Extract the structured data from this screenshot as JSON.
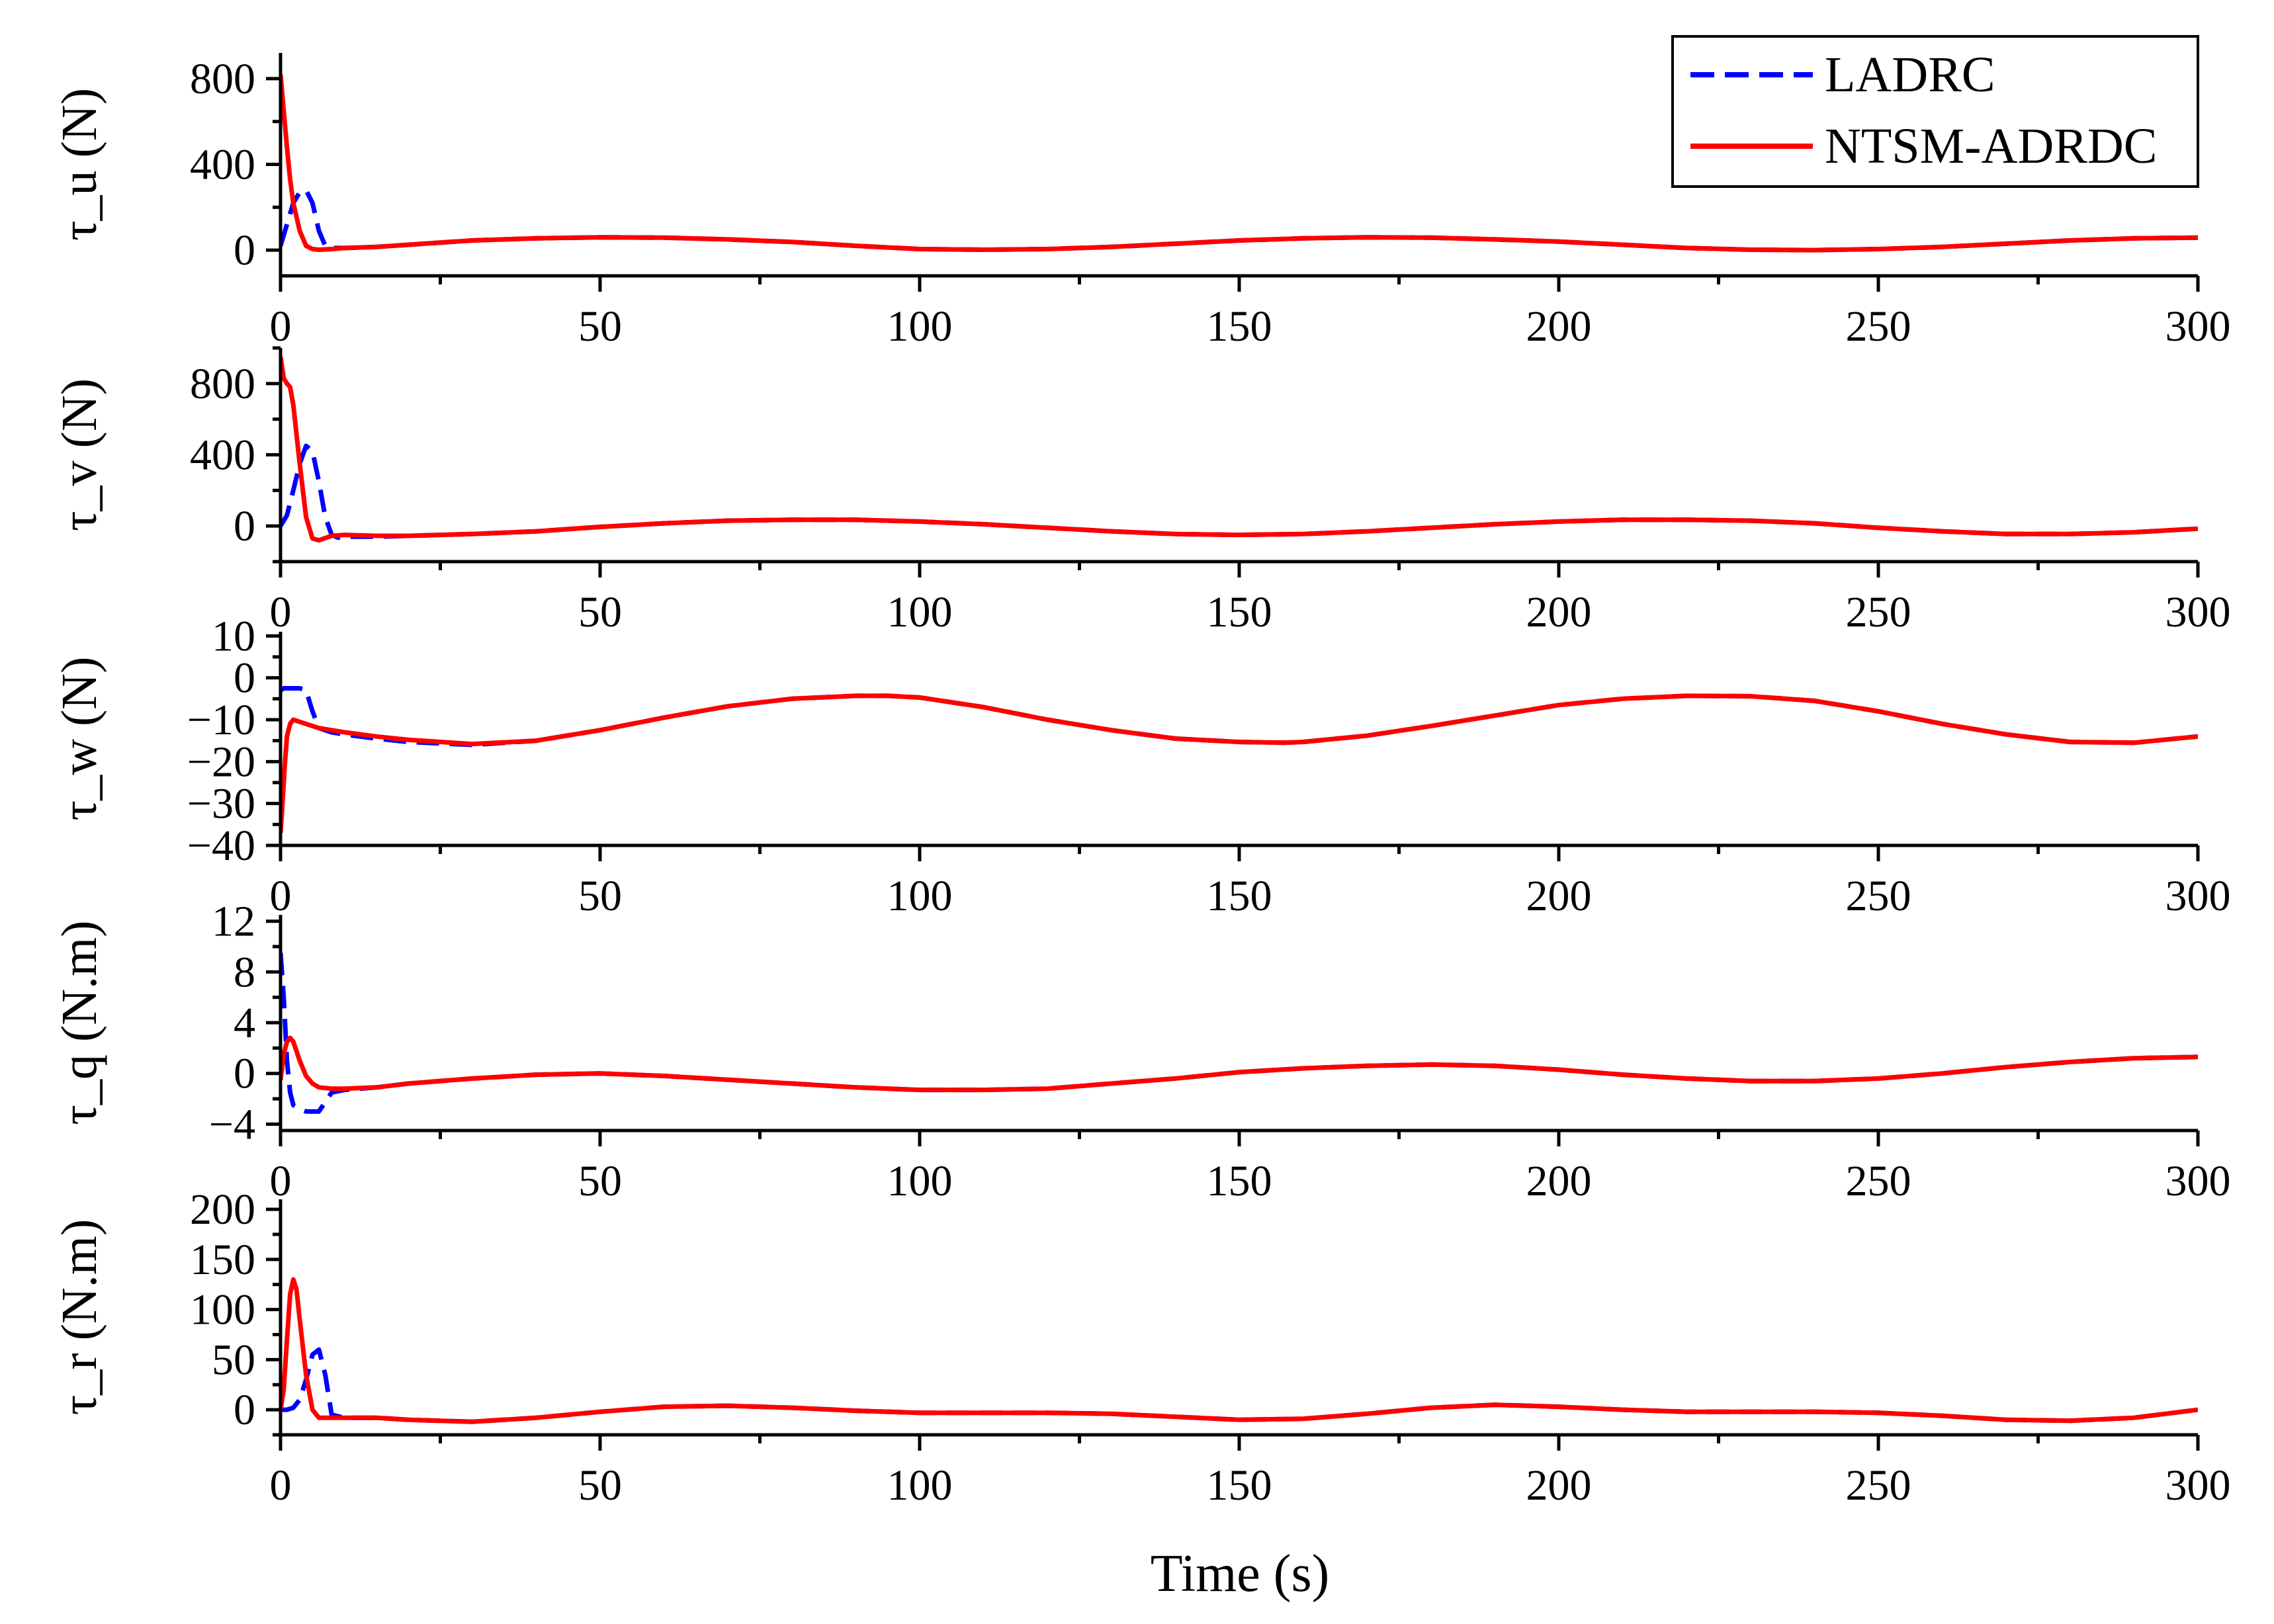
{
  "chart_data": {
    "type": "line",
    "xlabel": "Time (s)",
    "xlim": [
      0,
      300
    ],
    "xticks": [
      0,
      50,
      100,
      150,
      200,
      250,
      300
    ],
    "legend": {
      "placement": "top-right",
      "entries": [
        {
          "name": "LADRC",
          "color": "#0000FF",
          "style": "dashed"
        },
        {
          "name": "NTSM-ADRDC",
          "color": "#FF0000",
          "style": "solid"
        }
      ]
    },
    "panels": [
      {
        "ylabel": "τ_u (N)",
        "ylim": [
          -120,
          920
        ],
        "yticks": [
          0,
          400,
          800
        ],
        "series": [
          {
            "name": "LADRC",
            "x": [
              0,
              1,
              2,
              3,
              4,
              5,
              6,
              7,
              8,
              10,
              15,
              20,
              30,
              40,
              50,
              60,
              70,
              80,
              90,
              100,
              110,
              120,
              130,
              140,
              150,
              160,
              170,
              180,
              190,
              200,
              210,
              220,
              230,
              240,
              250,
              260,
              270,
              280,
              290,
              300
            ],
            "y": [
              20,
              120,
              220,
              270,
              280,
              220,
              90,
              20,
              10,
              10,
              15,
              25,
              45,
              55,
              60,
              58,
              50,
              38,
              20,
              5,
              2,
              5,
              15,
              30,
              45,
              55,
              60,
              58,
              50,
              40,
              25,
              10,
              2,
              0,
              5,
              15,
              30,
              45,
              55,
              58
            ]
          },
          {
            "name": "NTSM-ADRDC",
            "x": [
              0,
              0.5,
              1,
              1.5,
              2,
              3,
              4,
              5,
              6,
              8,
              10,
              15,
              20,
              30,
              40,
              50,
              60,
              70,
              80,
              90,
              100,
              110,
              120,
              130,
              140,
              150,
              160,
              170,
              180,
              190,
              200,
              210,
              220,
              230,
              240,
              250,
              260,
              270,
              280,
              290,
              300
            ],
            "y": [
              820,
              650,
              480,
              330,
              220,
              90,
              20,
              5,
              2,
              5,
              10,
              15,
              25,
              45,
              55,
              60,
              58,
              50,
              38,
              20,
              5,
              2,
              5,
              15,
              30,
              45,
              55,
              60,
              58,
              50,
              40,
              25,
              10,
              2,
              0,
              5,
              15,
              30,
              45,
              55,
              58
            ]
          }
        ]
      },
      {
        "ylabel": "τ_v (N)",
        "ylim": [
          -200,
          1000
        ],
        "yticks": [
          0,
          400,
          800
        ],
        "series": [
          {
            "name": "LADRC",
            "x": [
              0,
              1,
              2,
              3,
              4,
              5,
              6,
              7,
              8,
              9,
              10,
              15,
              20,
              30,
              40,
              50,
              60,
              70,
              80,
              90,
              100,
              110,
              120,
              130,
              140,
              150,
              160,
              170,
              180,
              190,
              200,
              210,
              220,
              230,
              240,
              250,
              260,
              270,
              280,
              290,
              300
            ],
            "y": [
              0,
              60,
              200,
              350,
              450,
              420,
              250,
              50,
              -50,
              -65,
              -60,
              -60,
              -55,
              -45,
              -30,
              -5,
              15,
              30,
              35,
              35,
              25,
              10,
              -10,
              -30,
              -45,
              -50,
              -45,
              -30,
              -10,
              10,
              25,
              35,
              35,
              30,
              15,
              -10,
              -30,
              -45,
              -45,
              -35,
              -15
            ]
          },
          {
            "name": "NTSM-ADRDC",
            "x": [
              0,
              0.5,
              1,
              1.5,
              2,
              3,
              4,
              5,
              6,
              8,
              10,
              15,
              20,
              30,
              40,
              50,
              60,
              70,
              80,
              90,
              100,
              110,
              120,
              130,
              140,
              150,
              160,
              170,
              180,
              190,
              200,
              210,
              220,
              230,
              240,
              250,
              260,
              270,
              280,
              290,
              300
            ],
            "y": [
              950,
              830,
              800,
              780,
              680,
              350,
              50,
              -70,
              -80,
              -55,
              -50,
              -55,
              -55,
              -45,
              -30,
              -5,
              15,
              30,
              35,
              35,
              25,
              10,
              -10,
              -30,
              -45,
              -50,
              -45,
              -30,
              -10,
              10,
              25,
              35,
              35,
              30,
              15,
              -10,
              -30,
              -45,
              -45,
              -35,
              -15
            ]
          }
        ]
      },
      {
        "ylabel": "τ_w (N)",
        "ylim": [
          -40,
          11
        ],
        "yticks": [
          -40,
          -30,
          -20,
          -10,
          0,
          10
        ],
        "series": [
          {
            "name": "LADRC",
            "x": [
              0,
              0.5,
              1,
              2,
              3,
              4,
              5,
              6,
              7,
              8,
              10,
              15,
              20,
              30,
              40,
              50,
              60,
              70,
              80,
              90,
              95,
              100,
              110,
              120,
              130,
              140,
              150,
              157,
              160,
              170,
              180,
              190,
              200,
              210,
              220,
              230,
              240,
              250,
              260,
              270,
              280,
              290,
              300
            ],
            "y": [
              -3,
              -2.5,
              -2.5,
              -2.5,
              -2.5,
              -3,
              -8,
              -12,
              -12.5,
              -13,
              -13.5,
              -14.5,
              -15.3,
              -16,
              -15,
              -12.5,
              -9.5,
              -6.8,
              -5,
              -4.3,
              -4.3,
              -4.7,
              -7,
              -10,
              -12.5,
              -14.5,
              -15.3,
              -15.5,
              -15.3,
              -13.8,
              -11.5,
              -9,
              -6.5,
              -5,
              -4.3,
              -4.4,
              -5.5,
              -8,
              -11,
              -13.5,
              -15.3,
              -15.5,
              -14
            ]
          },
          {
            "name": "NTSM-ADRDC",
            "x": [
              0,
              0.3,
              0.7,
              1,
              1.5,
              2,
              3,
              4,
              5,
              6,
              8,
              10,
              15,
              20,
              30,
              40,
              50,
              60,
              70,
              80,
              90,
              95,
              100,
              110,
              120,
              130,
              140,
              150,
              157,
              160,
              170,
              180,
              190,
              200,
              210,
              220,
              230,
              240,
              250,
              260,
              270,
              280,
              290,
              300
            ],
            "y": [
              -37,
              -30,
              -20,
              -14,
              -11,
              -10,
              -10.5,
              -11,
              -11.5,
              -12,
              -12.5,
              -13,
              -14,
              -14.8,
              -15.8,
              -15,
              -12.5,
              -9.5,
              -6.8,
              -5,
              -4.3,
              -4.3,
              -4.7,
              -7,
              -10,
              -12.5,
              -14.5,
              -15.3,
              -15.5,
              -15.3,
              -13.8,
              -11.5,
              -9,
              -6.5,
              -5,
              -4.3,
              -4.4,
              -5.5,
              -8,
              -11,
              -13.5,
              -15.3,
              -15.5,
              -14
            ]
          }
        ]
      },
      {
        "ylabel": "τ_q (N.m)",
        "ylim": [
          -4.5,
          12.5
        ],
        "yticks": [
          -4,
          0,
          4,
          8,
          12
        ],
        "series": [
          {
            "name": "LADRC",
            "x": [
              0,
              0.5,
              1,
              1.5,
              2,
              3,
              4,
              5,
              6,
              8,
              10,
              15,
              20,
              30,
              40,
              50,
              60,
              70,
              80,
              90,
              100,
              110,
              120,
              130,
              140,
              150,
              160,
              170,
              180,
              190,
              200,
              210,
              220,
              230,
              240,
              250,
              260,
              270,
              280,
              290,
              300
            ],
            "y": [
              9.5,
              6,
              1,
              -1.5,
              -2.5,
              -2.8,
              -3,
              -3,
              -3,
              -1.5,
              -1.3,
              -1.1,
              -0.8,
              -0.4,
              -0.1,
              0,
              -0.2,
              -0.5,
              -0.8,
              -1.1,
              -1.3,
              -1.3,
              -1.2,
              -0.8,
              -0.4,
              0.1,
              0.4,
              0.6,
              0.7,
              0.6,
              0.3,
              -0.1,
              -0.4,
              -0.6,
              -0.6,
              -0.4,
              0,
              0.5,
              0.9,
              1.2,
              1.3
            ]
          },
          {
            "name": "NTSM-ADRDC",
            "x": [
              0,
              0.5,
              1,
              1.5,
              2,
              3,
              4,
              5,
              6,
              8,
              10,
              15,
              20,
              30,
              40,
              50,
              60,
              70,
              80,
              90,
              100,
              110,
              120,
              130,
              140,
              150,
              160,
              170,
              180,
              190,
              200,
              210,
              220,
              230,
              240,
              250,
              260,
              270,
              280,
              290,
              300
            ],
            "y": [
              -0.5,
              1.5,
              2.5,
              2.8,
              2.5,
              1,
              -0.2,
              -0.8,
              -1.1,
              -1.2,
              -1.2,
              -1.1,
              -0.8,
              -0.4,
              -0.1,
              0,
              -0.2,
              -0.5,
              -0.8,
              -1.1,
              -1.3,
              -1.3,
              -1.2,
              -0.8,
              -0.4,
              0.1,
              0.4,
              0.6,
              0.7,
              0.6,
              0.3,
              -0.1,
              -0.4,
              -0.6,
              -0.6,
              -0.4,
              0,
              0.5,
              0.9,
              1.2,
              1.3
            ]
          }
        ]
      },
      {
        "ylabel": "τ_r (N.m)",
        "ylim": [
          -25,
          210
        ],
        "yticks": [
          0,
          50,
          100,
          150,
          200
        ],
        "series": [
          {
            "name": "LADRC",
            "x": [
              0,
              1,
              2,
              3,
              4,
              5,
              6,
              7,
              8,
              10,
              15,
              20,
              30,
              40,
              50,
              60,
              70,
              80,
              90,
              100,
              110,
              120,
              130,
              140,
              150,
              160,
              170,
              180,
              190,
              200,
              210,
              220,
              230,
              240,
              250,
              260,
              270,
              280,
              290,
              300
            ],
            "y": [
              0,
              0,
              2,
              10,
              30,
              55,
              60,
              35,
              -5,
              -8,
              -8,
              -10,
              -12,
              -8,
              -2,
              3,
              4,
              2,
              -1,
              -3,
              -3,
              -3,
              -4,
              -7,
              -10,
              -9,
              -4,
              2,
              5,
              3,
              0,
              -2,
              -2,
              -2,
              -3,
              -6,
              -10,
              -11,
              -8,
              0
            ]
          },
          {
            "name": "NTSM-ADRDC",
            "x": [
              0,
              0.5,
              1,
              1.5,
              2,
              2.5,
              3,
              4,
              5,
              6,
              8,
              10,
              15,
              20,
              30,
              40,
              50,
              60,
              70,
              80,
              90,
              100,
              110,
              120,
              130,
              140,
              150,
              160,
              170,
              180,
              190,
              200,
              210,
              220,
              230,
              240,
              250,
              260,
              270,
              280,
              290,
              300
            ],
            "y": [
              0,
              20,
              70,
              115,
              130,
              120,
              90,
              35,
              0,
              -8,
              -8,
              -8,
              -8,
              -10,
              -12,
              -8,
              -2,
              3,
              4,
              2,
              -1,
              -3,
              -3,
              -3,
              -4,
              -7,
              -10,
              -9,
              -4,
              2,
              5,
              3,
              0,
              -2,
              -2,
              -2,
              -3,
              -6,
              -10,
              -11,
              -8,
              0
            ]
          }
        ]
      }
    ]
  }
}
